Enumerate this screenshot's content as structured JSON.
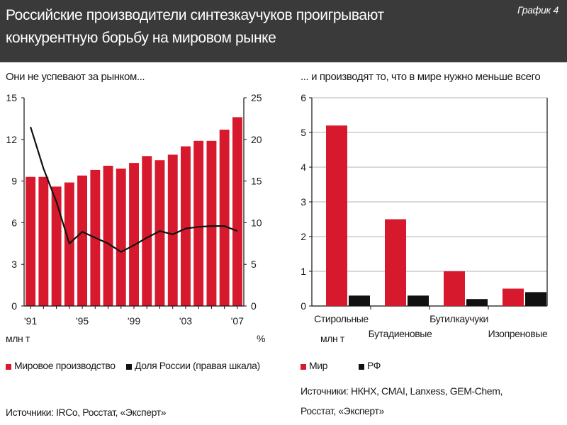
{
  "header": {
    "title_line1": "Российские производители синтезкаучуков проигрывают",
    "title_line2": "конкурентную борьбу на мировом рынке",
    "badge": "График 4"
  },
  "colors": {
    "red": "#d7192e",
    "black": "#111111",
    "header_bg": "#3a3a3a"
  },
  "left": {
    "subtitle": "Они не успевают за рынком...",
    "left_unit": "млн т",
    "right_unit": "%",
    "legend": {
      "bars": "Мировое производство",
      "line": "Доля России (правая шкала)"
    },
    "sources": "Источники: IRCo, Росстат, «Эксперт»"
  },
  "right": {
    "subtitle": "... и производят то, что в мире нужно меньше всего",
    "unit": "млн т",
    "legend": {
      "world": "Мир",
      "rf": "РФ"
    },
    "sources_line1": "Источники: НКНХ, CMAI, Lanxess, GEM-Chem,",
    "sources_line2": "Росстат, «Эксперт»"
  },
  "chart_data": [
    {
      "type": "bar",
      "title": "Они не успевают за рынком...",
      "x": [
        1991,
        1992,
        1993,
        1994,
        1995,
        1996,
        1997,
        1998,
        1999,
        2000,
        2001,
        2002,
        2003,
        2004,
        2005,
        2006,
        2007
      ],
      "x_tick_labels": [
        "'91",
        "'95",
        "'99",
        "'03",
        "'07"
      ],
      "x_tick_years": [
        1991,
        1995,
        1999,
        2003,
        2007
      ],
      "ylim_left": [
        0,
        15
      ],
      "yticks_left": [
        0,
        3,
        6,
        9,
        12,
        15
      ],
      "ylim_right": [
        0,
        25
      ],
      "yticks_right": [
        0,
        5,
        10,
        15,
        20,
        25
      ],
      "ylabel_left": "млн т",
      "ylabel_right": "%",
      "series": [
        {
          "name": "Мировое производство",
          "type": "bar",
          "axis": "left",
          "color": "#d7192e",
          "values": [
            9.3,
            9.3,
            8.6,
            8.9,
            9.4,
            9.8,
            10.1,
            9.9,
            10.3,
            10.8,
            10.5,
            10.9,
            11.5,
            11.9,
            11.9,
            12.7,
            13.6
          ]
        },
        {
          "name": "Доля России (правая шкала)",
          "type": "line",
          "axis": "right",
          "color": "#111111",
          "values": [
            21.5,
            16.5,
            12.5,
            7.5,
            8.9,
            8.2,
            7.5,
            6.5,
            7.3,
            8.2,
            9.0,
            8.6,
            9.3,
            9.5,
            9.6,
            9.6,
            9.0
          ]
        }
      ],
      "legend_position": "bottom",
      "grid": false
    },
    {
      "type": "bar",
      "title": "... и производят то, что в мире нужно меньше всего",
      "categories": [
        "Стирольные",
        "Бутадиеновые",
        "Бутилкаучуки",
        "Изопреновые"
      ],
      "ylim": [
        0,
        6
      ],
      "yticks": [
        0,
        1,
        2,
        3,
        4,
        5,
        6
      ],
      "ylabel": "млн т",
      "series": [
        {
          "name": "Мир",
          "color": "#d7192e",
          "values": [
            5.2,
            2.5,
            1.0,
            0.5
          ]
        },
        {
          "name": "РФ",
          "color": "#111111",
          "values": [
            0.3,
            0.3,
            0.2,
            0.4
          ]
        }
      ],
      "legend_position": "bottom",
      "grid": true
    }
  ]
}
